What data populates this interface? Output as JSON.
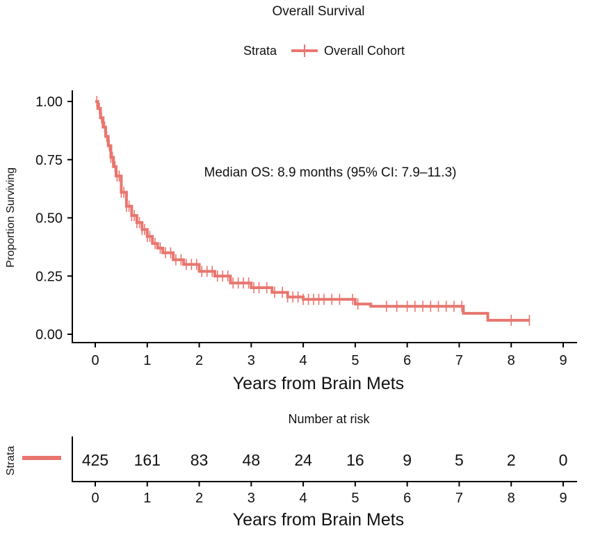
{
  "chart_data": [
    {
      "type": "line",
      "subtype": "kaplan-meier",
      "title": "Overall Survival",
      "xlabel": "Years from Brain Mets",
      "ylabel": "Proportion Surviving",
      "xlim": [
        0,
        9
      ],
      "ylim": [
        0,
        1
      ],
      "x_ticks": [
        "0",
        "1",
        "2",
        "3",
        "4",
        "5",
        "6",
        "7",
        "8",
        "9"
      ],
      "y_ticks": [
        "0.00",
        "0.25",
        "0.50",
        "0.75",
        "1.00"
      ],
      "grid": false,
      "legend": {
        "title": "Strata",
        "position": "top",
        "entries": [
          "Overall Cohort"
        ]
      },
      "annotation": "Median OS: 8.9 months (95% CI: 7.9–11.3)",
      "color": "#e8766f",
      "series": [
        {
          "name": "Overall Cohort",
          "x": [
            0,
            0.05,
            0.1,
            0.15,
            0.2,
            0.25,
            0.3,
            0.35,
            0.4,
            0.5,
            0.6,
            0.7,
            0.8,
            0.9,
            1.0,
            1.1,
            1.2,
            1.3,
            1.5,
            1.7,
            2.0,
            2.3,
            2.6,
            3.0,
            3.4,
            3.7,
            4.0,
            4.5,
            5.0,
            5.3,
            6.0,
            7.0,
            7.08,
            7.5,
            7.55,
            8.35
          ],
          "y": [
            1.0,
            0.97,
            0.93,
            0.89,
            0.85,
            0.81,
            0.76,
            0.72,
            0.68,
            0.61,
            0.55,
            0.51,
            0.48,
            0.45,
            0.42,
            0.39,
            0.37,
            0.35,
            0.32,
            0.3,
            0.27,
            0.25,
            0.22,
            0.2,
            0.18,
            0.16,
            0.15,
            0.15,
            0.13,
            0.12,
            0.12,
            0.12,
            0.09,
            0.09,
            0.06,
            0.06
          ]
        }
      ],
      "censor_x": [
        0.03,
        0.08,
        0.12,
        0.18,
        0.22,
        0.27,
        0.3,
        0.33,
        0.38,
        0.42,
        0.46,
        0.5,
        0.55,
        0.6,
        0.65,
        0.7,
        0.75,
        0.8,
        0.85,
        0.9,
        0.95,
        1.0,
        1.05,
        1.15,
        1.25,
        1.35,
        1.45,
        1.55,
        1.65,
        1.75,
        1.85,
        1.95,
        2.05,
        2.15,
        2.25,
        2.35,
        2.45,
        2.55,
        2.65,
        2.75,
        2.85,
        2.95,
        3.05,
        3.15,
        3.3,
        3.45,
        3.6,
        3.7,
        3.8,
        3.9,
        4.0,
        4.1,
        4.2,
        4.3,
        4.4,
        4.55,
        4.7,
        4.95,
        5.05,
        5.6,
        5.8,
        6.0,
        6.15,
        6.3,
        6.45,
        6.6,
        6.75,
        6.9,
        7.05,
        8.0,
        8.35
      ]
    },
    {
      "type": "table",
      "title": "Number at risk",
      "xlabel": "Years from Brain Mets",
      "ylabel": "Strata",
      "x_ticks": [
        "0",
        "1",
        "2",
        "3",
        "4",
        "5",
        "6",
        "7",
        "8",
        "9"
      ],
      "values": [
        "425",
        "161",
        "83",
        "48",
        "24",
        "16",
        "9",
        "5",
        "2",
        "0"
      ]
    }
  ]
}
